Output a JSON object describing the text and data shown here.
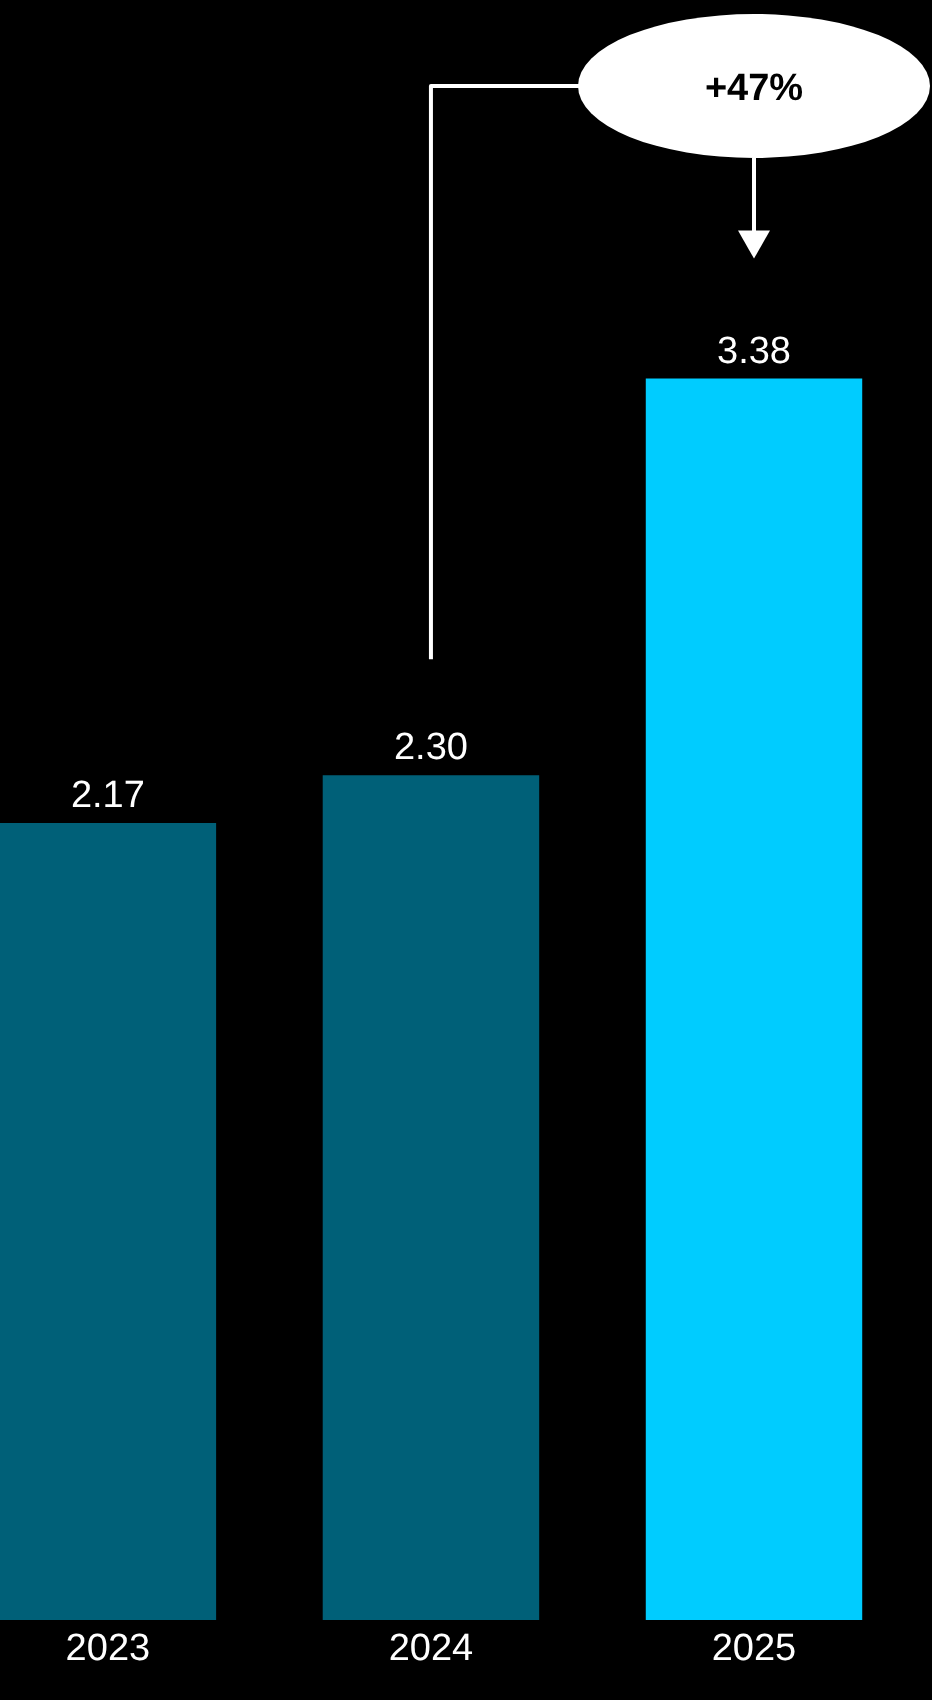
{
  "chart_data": {
    "type": "bar",
    "categories": [
      "2023",
      "2024",
      "2025"
    ],
    "values": [
      2.17,
      2.3,
      3.38
    ],
    "colors": [
      "#006078",
      "#006078",
      "#00ccff"
    ],
    "value_labels": [
      "2.17",
      "2.30",
      "3.38"
    ],
    "annotations": [
      "+47%"
    ],
    "grid": false
  }
}
